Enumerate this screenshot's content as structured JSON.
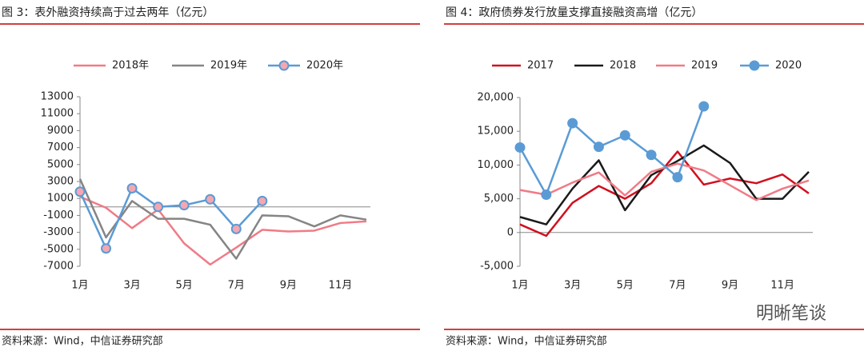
{
  "chart_data": [
    {
      "type": "line",
      "title": "图 3：表外融资持续高于过去两年（亿元）",
      "source": "资料来源：Wind，中信证券研究部",
      "categories": [
        "1月",
        null,
        "3月",
        null,
        "5月",
        null,
        "7月",
        null,
        "9月",
        null,
        "11月",
        null
      ],
      "ylim": [
        -7000,
        13000
      ],
      "yticks": [
        -7000,
        -5000,
        -3000,
        -1000,
        1000,
        3000,
        5000,
        7000,
        9000,
        11000,
        13000
      ],
      "legend": "top",
      "series": [
        {
          "name": "2018年",
          "color": "#f07b86",
          "values": [
            1200,
            -100,
            -2500,
            -300,
            -4300,
            -6800,
            -4800,
            -2700,
            -2900,
            -2800,
            -1900,
            -1700
          ]
        },
        {
          "name": "2019年",
          "color": "#858585",
          "values": [
            3300,
            -3600,
            700,
            -1400,
            -1400,
            -2100,
            -6100,
            -1000,
            -1100,
            -2300,
            -1000,
            -1500
          ]
        },
        {
          "name": "2020年",
          "color": "#5b9bd5",
          "marker_color": "#f4a7b1",
          "values": [
            1800,
            -4900,
            2200,
            0,
            200,
            900,
            -2600,
            700,
            null,
            null,
            null,
            null
          ]
        }
      ]
    },
    {
      "type": "line",
      "title": "图 4：政府债券发行放量支撑直接融资高增（亿元）",
      "source": "资料来源：Wind，中信证券研究部",
      "categories": [
        "1月",
        null,
        "3月",
        null,
        "5月",
        null,
        "7月",
        null,
        "9月",
        null,
        "11月",
        null
      ],
      "ylim": [
        -5000,
        20000
      ],
      "yticks": [
        {
          "value": -5000,
          "label": "-5,000"
        },
        0,
        {
          "value": 5000,
          "label": "5,000"
        },
        {
          "value": 10000,
          "label": "10,000"
        },
        {
          "value": 15000,
          "label": "15,000"
        },
        {
          "value": 20000,
          "label": "20,000"
        }
      ],
      "legend": "top",
      "series": [
        {
          "name": "2017",
          "color": "#d0101e",
          "values": [
            1200,
            -500,
            4400,
            6900,
            5000,
            7300,
            12000,
            7100,
            8000,
            7300,
            8600,
            5800
          ]
        },
        {
          "name": "2018",
          "color": "#1a1a1a",
          "values": [
            2300,
            1200,
            6500,
            10700,
            3300,
            8500,
            10600,
            12900,
            10300,
            5000,
            5000,
            9000
          ]
        },
        {
          "name": "2019",
          "color": "#f07b86",
          "values": [
            6300,
            5600,
            7400,
            8900,
            5500,
            9000,
            10200,
            9200,
            7000,
            4800,
            6500,
            7700
          ]
        },
        {
          "name": "2020",
          "color": "#5b9bd5",
          "marker_color": "#5b9bd5",
          "values": [
            12600,
            5600,
            16200,
            12700,
            14400,
            11500,
            8200,
            18700,
            null,
            null,
            null,
            null
          ]
        }
      ]
    }
  ],
  "watermark": "明晰笔谈"
}
